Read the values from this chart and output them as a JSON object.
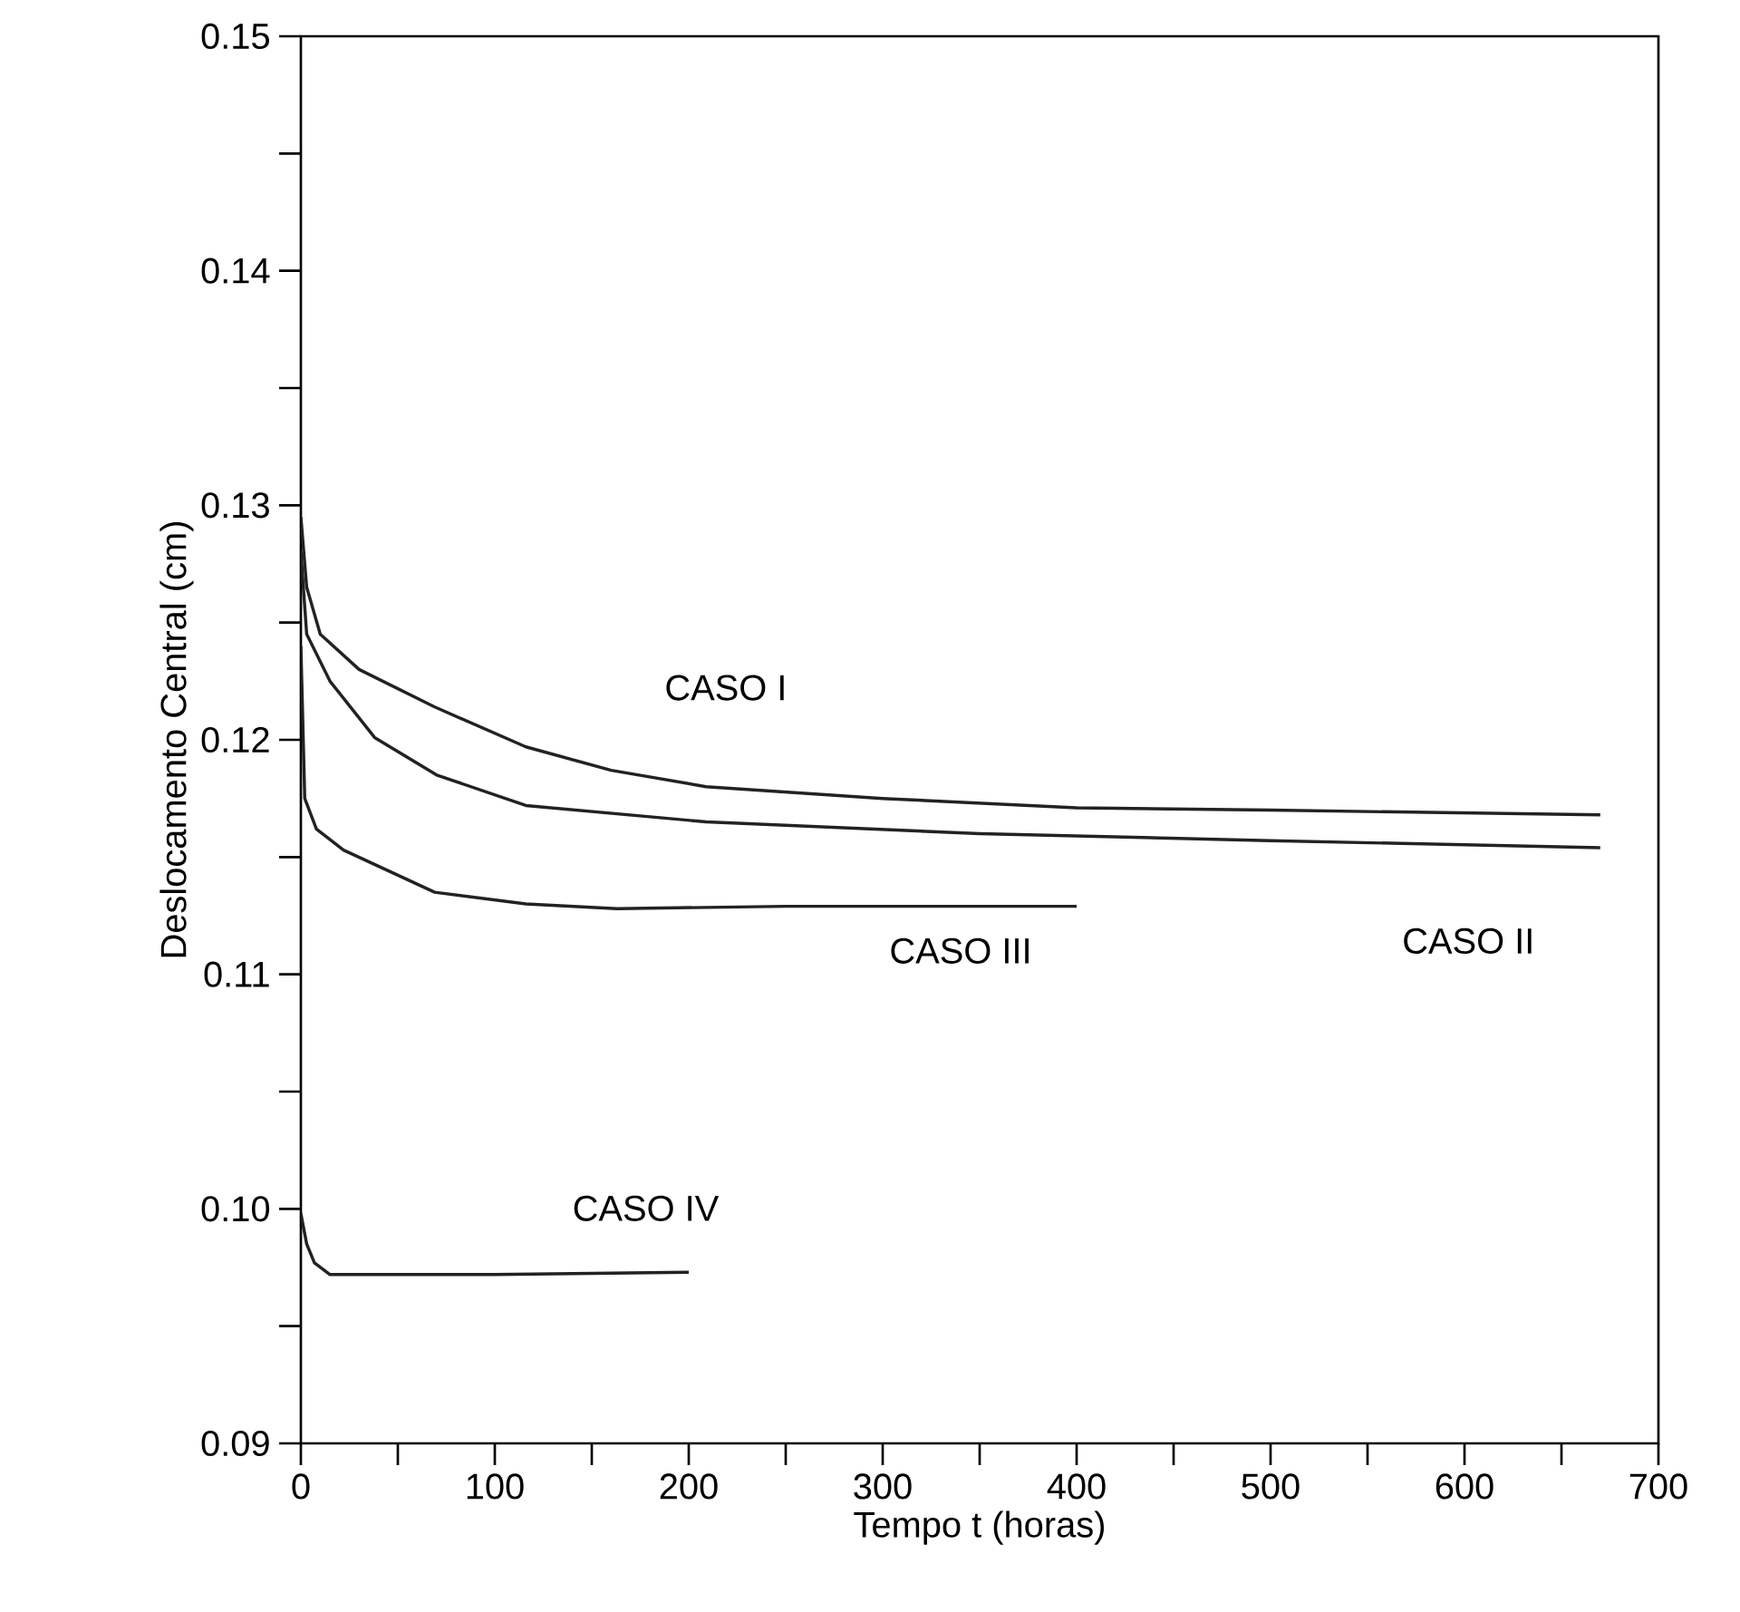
{
  "chart_data": {
    "type": "line",
    "xlabel": "Tempo  t  (horas)",
    "ylabel": "Deslocamento Central (cm)",
    "xlim": [
      0,
      700
    ],
    "ylim": [
      0.09,
      0.15
    ],
    "xticks": [
      0,
      {
        "value": 50,
        "label": null
      },
      100,
      {
        "value": 150,
        "label": null
      },
      200,
      {
        "value": 250,
        "label": null
      },
      300,
      {
        "value": 350,
        "label": null
      },
      400,
      {
        "value": 450,
        "label": null
      },
      500,
      {
        "value": 550,
        "label": null
      },
      600,
      {
        "value": 650,
        "label": null
      },
      700
    ],
    "yticks": [
      0.09,
      {
        "value": 0.095,
        "label": null
      },
      {
        "value": 0.1,
        "label": "0.10"
      },
      {
        "value": 0.105,
        "label": null
      },
      0.11,
      {
        "value": 0.115,
        "label": null
      },
      0.12,
      {
        "value": 0.125,
        "label": null
      },
      0.13,
      {
        "value": 0.135,
        "label": null
      },
      0.14,
      {
        "value": 0.145,
        "label": null
      },
      0.15
    ],
    "line_style": "solid",
    "marker": "none",
    "grid": false,
    "legend": false,
    "series": [
      {
        "name": "CASO  I",
        "color": "#222222",
        "x": [
          0,
          3,
          10,
          30,
          69,
          116,
          160,
          209,
          300,
          400,
          500,
          670
        ],
        "values": [
          0.1295,
          0.1265,
          0.1245,
          0.123,
          0.1214,
          0.1197,
          0.1187,
          0.118,
          0.1175,
          0.1171,
          0.117,
          0.1168
        ]
      },
      {
        "name": "CASO  II",
        "color": "#222222",
        "x": [
          0,
          3,
          15,
          38,
          70,
          116,
          209,
          350,
          500,
          670
        ],
        "values": [
          0.128,
          0.1245,
          0.1225,
          0.1201,
          0.1185,
          0.1172,
          0.1165,
          0.116,
          0.1157,
          0.1154
        ]
      },
      {
        "name": "CASO  III",
        "color": "#222222",
        "x": [
          0,
          2,
          8,
          22,
          69,
          116,
          163,
          250,
          400
        ],
        "values": [
          0.124,
          0.1175,
          0.1162,
          0.1153,
          0.1135,
          0.113,
          0.1128,
          0.1129,
          0.1129
        ]
      },
      {
        "name": "CASO  IV",
        "color": "#222222",
        "x": [
          0,
          3,
          7,
          15,
          100,
          200
        ],
        "values": [
          0.0998,
          0.0985,
          0.0977,
          0.0972,
          0.0972,
          0.0973
        ]
      }
    ]
  }
}
